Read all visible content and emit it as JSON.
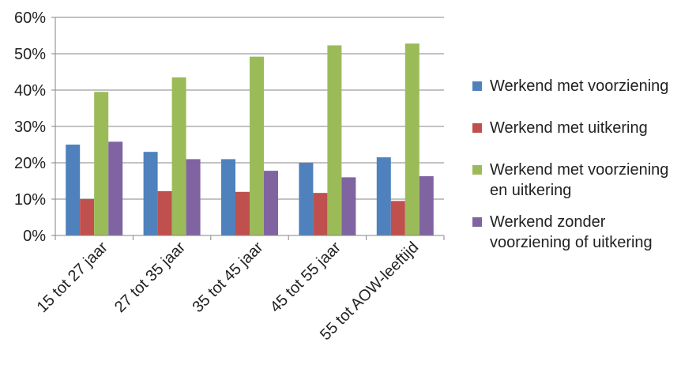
{
  "chart_data": {
    "type": "bar",
    "categories": [
      "15 tot 27 jaar",
      "27 tot 35 jaar",
      "35 tot 45 jaar",
      "45 tot 55 jaar",
      "55 tot AOW-leeftijd"
    ],
    "series": [
      {
        "name": "Werkend met voorziening",
        "color": "#4F81BD",
        "values": [
          25,
          23,
          21,
          20,
          21.5
        ]
      },
      {
        "name": "Werkend met uitkering",
        "color": "#C0504D",
        "values": [
          10,
          12.2,
          12,
          11.7,
          9.5
        ]
      },
      {
        "name": "Werkend met voorziening\nen uitkering",
        "color": "#9BBB59",
        "values": [
          39.5,
          43.5,
          49.2,
          52.3,
          52.8
        ]
      },
      {
        "name": "Werkend zonder\nvoorziening of uitkering",
        "color": "#8064A2",
        "values": [
          25.8,
          21,
          17.8,
          16,
          16.3
        ]
      }
    ],
    "ylim": [
      0,
      60
    ],
    "yticks": [
      "0%",
      "10%",
      "20%",
      "30%",
      "40%",
      "50%",
      "60%"
    ],
    "grid": true,
    "legend_position": "right"
  }
}
